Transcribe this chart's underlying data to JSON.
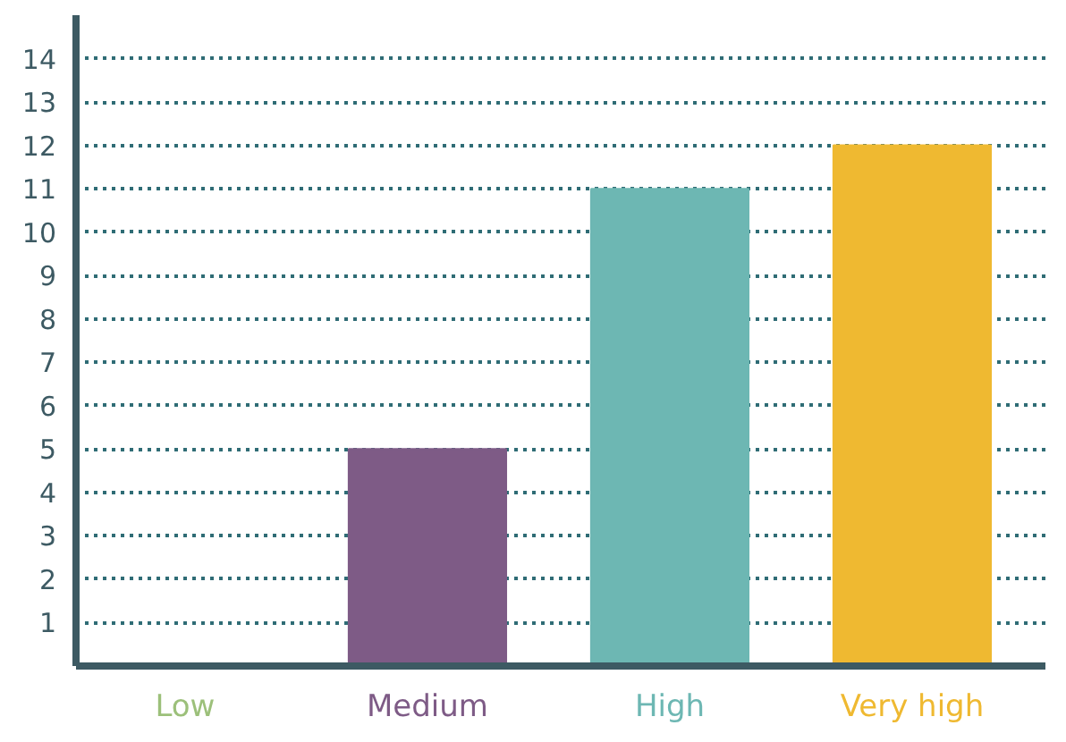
{
  "chart_data": {
    "type": "bar",
    "categories": [
      "Low",
      "Medium",
      "High",
      "Very high"
    ],
    "values": [
      0,
      5,
      11,
      12
    ],
    "colors": [
      "#9cc07a",
      "#7e5b86",
      "#6db7b3",
      "#efb931"
    ],
    "ylim": [
      0,
      15
    ],
    "yticks": [
      1,
      2,
      3,
      4,
      5,
      6,
      7,
      8,
      9,
      10,
      11,
      12,
      13,
      14
    ],
    "grid": "y"
  }
}
